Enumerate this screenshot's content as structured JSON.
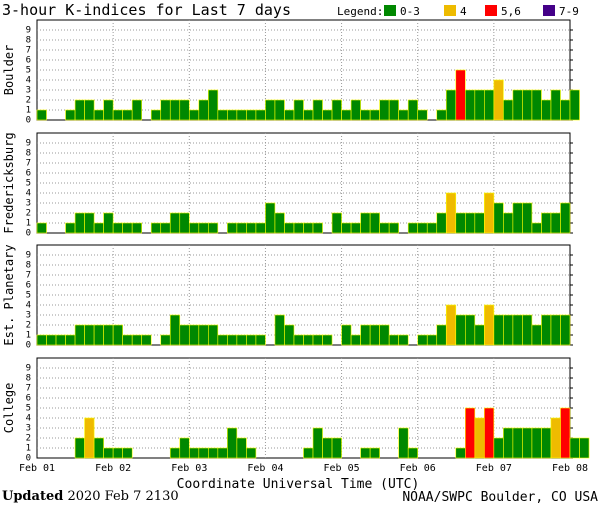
{
  "chart_data": {
    "type": "bar",
    "title": "3-hour K-indices for Last 7 days",
    "xlabel": "Coordinate Universal Time (UTC)",
    "ylim": [
      0,
      9
    ],
    "yticks": [
      0,
      1,
      2,
      3,
      4,
      5,
      6,
      7,
      8,
      9
    ],
    "x_tick_labels": [
      "Feb 01",
      "Feb 02",
      "Feb 03",
      "Feb 04",
      "Feb 05",
      "Feb 06",
      "Feb 07",
      "Feb 08"
    ],
    "bars_per_day": 8,
    "grid": true,
    "legend_position": "top-right",
    "legend": {
      "title": "Legend:",
      "items": [
        {
          "label": "0-3",
          "color": "#008800"
        },
        {
          "label": "4",
          "color": "#eebb00"
        },
        {
          "label": "5,6",
          "color": "#ff0000"
        },
        {
          "label": "7-9",
          "color": "#440088"
        }
      ]
    },
    "panels": [
      {
        "name": "Boulder",
        "values": [
          1,
          0,
          0,
          1,
          2,
          2,
          1,
          2,
          1,
          1,
          2,
          0,
          1,
          2,
          2,
          2,
          1,
          2,
          3,
          1,
          1,
          1,
          1,
          1,
          2,
          2,
          1,
          2,
          1,
          2,
          1,
          2,
          1,
          2,
          1,
          1,
          2,
          2,
          1,
          2,
          1,
          0,
          1,
          3,
          5,
          3,
          3,
          3,
          4,
          2,
          3,
          3,
          3,
          2,
          3,
          2,
          3,
          0
        ]
      },
      {
        "name": "Fredericksburg",
        "values": [
          1,
          0,
          0,
          1,
          2,
          2,
          1,
          2,
          1,
          1,
          1,
          0,
          1,
          1,
          2,
          2,
          1,
          1,
          1,
          0,
          1,
          1,
          1,
          1,
          3,
          2,
          1,
          1,
          1,
          1,
          0,
          2,
          1,
          1,
          2,
          2,
          1,
          1,
          0,
          1,
          1,
          1,
          2,
          4,
          2,
          2,
          2,
          4,
          3,
          2,
          3,
          3,
          1,
          2,
          2,
          3,
          0
        ]
      },
      {
        "name": "Est. Planetary",
        "values": [
          1,
          1,
          1,
          1,
          2,
          2,
          2,
          2,
          2,
          1,
          1,
          1,
          0,
          1,
          3,
          2,
          2,
          2,
          2,
          1,
          1,
          1,
          1,
          1,
          0,
          3,
          2,
          1,
          1,
          1,
          1,
          0,
          2,
          1,
          2,
          2,
          2,
          1,
          1,
          0,
          1,
          1,
          2,
          4,
          3,
          3,
          2,
          4,
          3,
          3,
          3,
          3,
          2,
          3,
          3,
          3
        ]
      },
      {
        "name": "College",
        "values": [
          0,
          0,
          0,
          0,
          2,
          4,
          2,
          1,
          1,
          1,
          0,
          0,
          0,
          0,
          1,
          2,
          1,
          1,
          1,
          1,
          3,
          2,
          1,
          0,
          0,
          0,
          0,
          0,
          1,
          3,
          2,
          2,
          0,
          0,
          1,
          1,
          0,
          0,
          3,
          1,
          0,
          0,
          0,
          0,
          1,
          5,
          4,
          5,
          2,
          3,
          3,
          3,
          3,
          3,
          4,
          5,
          2,
          2
        ]
      }
    ]
  },
  "footer": {
    "updated_label": "Updated",
    "updated_value": "2020 Feb  7 2130",
    "credit": "NOAA/SWPC Boulder, CO USA"
  }
}
